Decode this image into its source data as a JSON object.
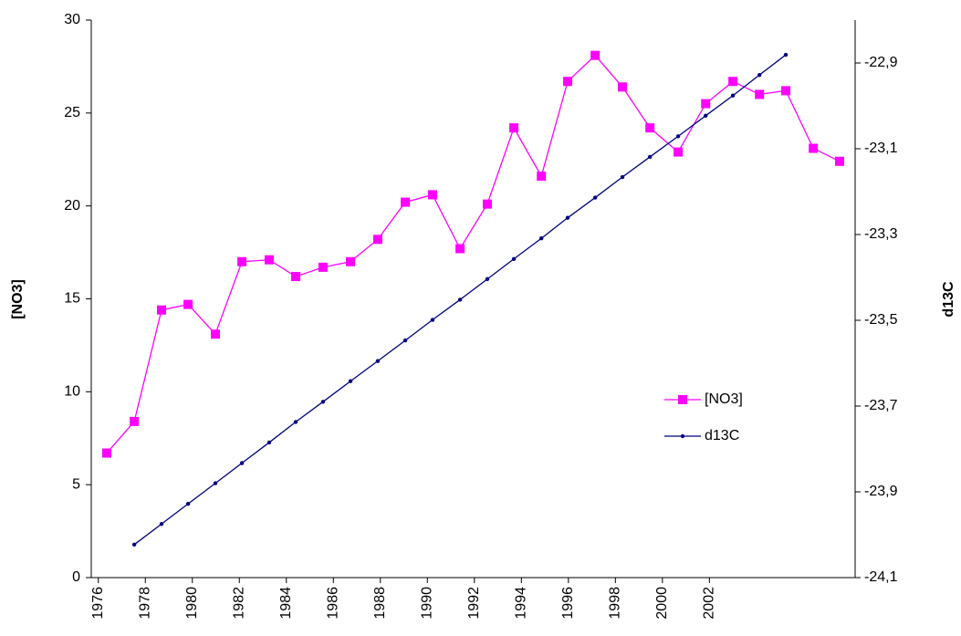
{
  "chart_data": {
    "type": "line",
    "x_label": "",
    "y_label": "[NO3]",
    "y2_label": "d13C",
    "xlim": [
      1975.7,
      2008.2
    ],
    "xticks": [
      1976,
      1978,
      1980,
      1982,
      1984,
      1986,
      1988,
      1990,
      1992,
      1994,
      1996,
      1998,
      2000,
      2002
    ],
    "ylim": [
      0,
      30
    ],
    "yticks": [
      0,
      5,
      10,
      15,
      20,
      25,
      30
    ],
    "y2lim": [
      -24.1,
      -22.8
    ],
    "y2ticks": [
      {
        "value": -24.1,
        "label": "-24,1"
      },
      {
        "value": -23.9,
        "label": "-23,9"
      },
      {
        "value": -23.7,
        "label": "-23,7"
      },
      {
        "value": -23.5,
        "label": "-23,5"
      },
      {
        "value": -23.3,
        "label": "-23,3"
      },
      {
        "value": -23.1,
        "label": "-23,1"
      },
      {
        "value": -22.9,
        "label": "-22,9"
      }
    ],
    "legend": "inside-right",
    "series": [
      {
        "name": "[NO3]",
        "color": "#ff00ff",
        "marker": "square",
        "x": [
          1976.36,
          1977.53,
          1978.69,
          1979.82,
          1980.98,
          1982.11,
          1983.27,
          1984.4,
          1985.56,
          1986.73,
          1987.89,
          1989.06,
          1990.22,
          1991.39,
          1992.55,
          1993.68,
          1994.85,
          1995.97,
          1997.14,
          1998.3,
          1999.47,
          2000.67,
          2001.84,
          2003.0,
          2004.13,
          2005.25,
          2006.42,
          2007.54
        ],
        "values": [
          6.7,
          8.4,
          14.4,
          14.7,
          13.1,
          17.0,
          17.1,
          16.2,
          16.7,
          17.0,
          18.2,
          20.2,
          20.6,
          17.7,
          20.1,
          24.2,
          21.6,
          26.7,
          28.1,
          26.4,
          24.2,
          22.9,
          25.5,
          26.7,
          26.0,
          26.2,
          23.1,
          22.4
        ]
      },
      {
        "name": "d13C",
        "color": "#000080",
        "marker": "dot",
        "axis": "y2",
        "x": [
          1977.53,
          1978.69,
          1979.82,
          1980.98,
          1982.11,
          1983.27,
          1984.4,
          1985.56,
          1986.73,
          1987.89,
          1989.06,
          1990.22,
          1991.39,
          1992.55,
          1993.68,
          1994.85,
          1995.97,
          1997.14,
          1998.3,
          1999.47,
          2000.67,
          2001.84,
          2003.0,
          2004.13,
          2005.25
        ],
        "values": [
          -24.023,
          -23.975,
          -23.928,
          -23.88,
          -23.833,
          -23.785,
          -23.737,
          -23.69,
          -23.642,
          -23.595,
          -23.547,
          -23.499,
          -23.452,
          -23.404,
          -23.357,
          -23.309,
          -23.261,
          -23.214,
          -23.166,
          -23.119,
          -23.071,
          -23.023,
          -22.976,
          -22.928,
          -22.881
        ]
      }
    ]
  }
}
